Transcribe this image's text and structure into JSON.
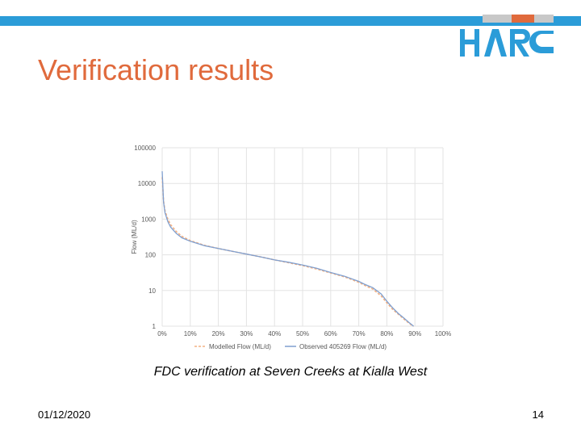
{
  "slide": {
    "title": "Verification results",
    "caption": "FDC verification at Seven Creeks at Kialla West",
    "date": "01/12/2020",
    "page_number": "14"
  },
  "logo": {
    "text": "HARC",
    "colors": {
      "blue": "#2b9cd8",
      "orange": "#e06a3c",
      "gray": "#c8c8c8"
    }
  },
  "colors": {
    "title": "#e06a3c",
    "top_bar": "#2b9cd8"
  },
  "chart_data": {
    "type": "line",
    "title": "",
    "xlabel": "",
    "ylabel": "Flow (ML/d)",
    "yscale": "log",
    "ylim": [
      1,
      100000
    ],
    "xlim": [
      0,
      100
    ],
    "x_ticks": [
      "0%",
      "10%",
      "20%",
      "30%",
      "40%",
      "50%",
      "60%",
      "70%",
      "80%",
      "90%",
      "100%"
    ],
    "y_ticks": [
      "1",
      "10",
      "100",
      "1000",
      "10000",
      "100000"
    ],
    "grid": true,
    "legend_position": "bottom",
    "series": [
      {
        "name": "Modelled Flow (ML/d)",
        "style": "dashed",
        "color": "#f4b183",
        "x": [
          0,
          0.5,
          1,
          2,
          3,
          5,
          7,
          10,
          15,
          20,
          25,
          30,
          35,
          40,
          45,
          50,
          55,
          60,
          65,
          70,
          72,
          75,
          78,
          80,
          82,
          84,
          86,
          88,
          89,
          89.5
        ],
        "y": [
          15000,
          3200,
          1700,
          1000,
          700,
          450,
          330,
          250,
          185,
          150,
          125,
          105,
          88,
          72,
          60,
          50,
          40,
          31,
          24,
          17,
          14,
          11,
          7,
          4.5,
          3,
          2.2,
          1.6,
          1.2,
          1.05,
          1
        ]
      },
      {
        "name": "Observed 405269 Flow (ML/d)",
        "style": "solid",
        "color": "#7f9fcf",
        "x": [
          0,
          0.5,
          1,
          2,
          3,
          5,
          7,
          10,
          15,
          20,
          25,
          30,
          35,
          40,
          45,
          50,
          55,
          60,
          65,
          70,
          72,
          75,
          78,
          80,
          82,
          84,
          86,
          88,
          89,
          89.5
        ],
        "y": [
          22000,
          3000,
          1500,
          850,
          600,
          400,
          300,
          240,
          180,
          150,
          125,
          105,
          88,
          72,
          62,
          52,
          42,
          32,
          25,
          18,
          15,
          12,
          8,
          5,
          3.3,
          2.3,
          1.7,
          1.25,
          1.08,
          1
        ]
      }
    ]
  }
}
